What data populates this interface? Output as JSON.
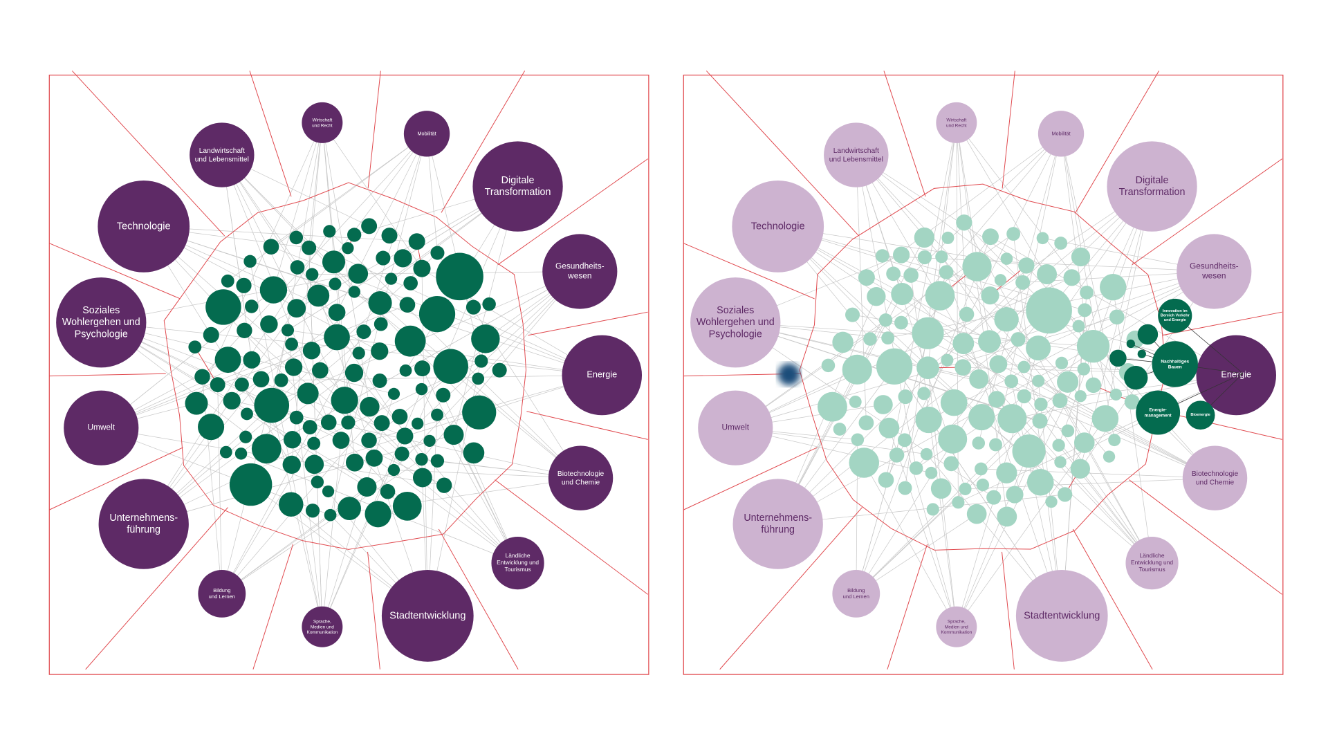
{
  "panels": [
    {
      "nodes": [
        {
          "label": [
            "Wirtschaft",
            "und Recht"
          ]
        },
        {
          "label": [
            "Mobilität"
          ]
        },
        {
          "label": [
            "Landwirtschaft",
            "und Lebensmittel"
          ]
        },
        {
          "label": [
            "Digitale",
            "Transformation"
          ]
        },
        {
          "label": [
            "Technologie"
          ]
        },
        {
          "label": [
            "Gesundheits-",
            "wesen"
          ]
        },
        {
          "label": [
            "Soziales",
            "Wohlergehen und",
            "Psychologie"
          ]
        },
        {
          "label": [
            "Energie"
          ]
        },
        {
          "label": [
            "Umwelt"
          ]
        },
        {
          "label": [
            "Biotechnologie",
            "und Chemie"
          ]
        },
        {
          "label": [
            "Unternehmens-",
            "führung"
          ]
        },
        {
          "label": [
            "Ländliche",
            "Entwicklung und",
            "Tourismus"
          ]
        },
        {
          "label": [
            "Bildung",
            "und Lernen"
          ]
        },
        {
          "label": [
            "Sprache,",
            "Medien und",
            "Kommunikation"
          ]
        },
        {
          "label": [
            "Stadtentwicklung"
          ]
        }
      ]
    },
    {
      "nodes": [
        {
          "label": [
            "Wirtschaft",
            "und Recht"
          ]
        },
        {
          "label": [
            "Mobilität"
          ]
        },
        {
          "label": [
            "Landwirtschaft",
            "und Lebensmittel"
          ]
        },
        {
          "label": [
            "Digitale",
            "Transformation"
          ]
        },
        {
          "label": [
            "Technologie"
          ]
        },
        {
          "label": [
            "Gesundheits-",
            "wesen"
          ]
        },
        {
          "label": [
            "Soziales",
            "Wohlergehen und",
            "Psychologie"
          ]
        },
        {
          "label": [
            "Energie"
          ]
        },
        {
          "label": [
            "Umwelt"
          ]
        },
        {
          "label": [
            "Biotechnologie",
            "und Chemie"
          ]
        },
        {
          "label": [
            "Unternehmens-",
            "führung"
          ]
        },
        {
          "label": [
            "Ländliche",
            "Entwicklung und",
            "Tourismus"
          ]
        },
        {
          "label": [
            "Bildung",
            "und Lernen"
          ]
        },
        {
          "label": [
            "Sprache,",
            "Medien und",
            "Kommunikation"
          ]
        },
        {
          "label": [
            "Stadtentwicklung"
          ]
        }
      ],
      "subnodes": [
        {
          "label": [
            "Innovation im",
            "Bereich Verkehr",
            "und Energie"
          ]
        },
        {
          "label": [
            "Nachhaltiges",
            "Bauen"
          ]
        },
        {
          "label": [
            "Energie-",
            "management"
          ]
        },
        {
          "label": [
            "Bioenergie"
          ]
        }
      ]
    }
  ]
}
